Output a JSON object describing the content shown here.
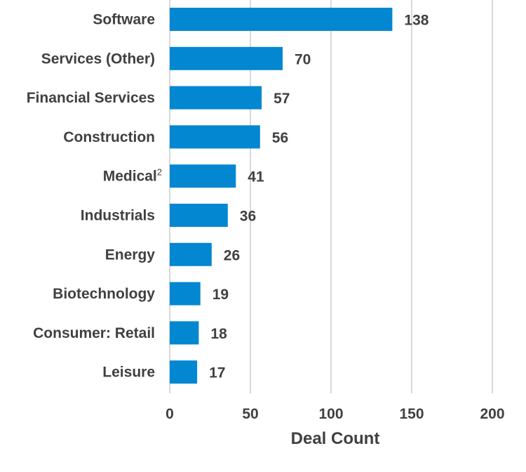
{
  "chart_data": {
    "type": "bar",
    "orientation": "horizontal",
    "title": "",
    "categories": [
      "Software",
      "Services (Other)",
      "Financial Services",
      "Construction",
      "Medical",
      "Industrials",
      "Energy",
      "Biotechnology",
      "Consumer: Retail",
      "Leisure"
    ],
    "category_superscripts": [
      "",
      "",
      "",
      "",
      "2",
      "",
      "",
      "",
      "",
      ""
    ],
    "values": [
      138,
      70,
      57,
      56,
      41,
      36,
      26,
      19,
      18,
      17
    ],
    "xlabel": "Deal Count",
    "ylabel": "",
    "xlim": [
      0,
      200
    ],
    "xticks": [
      0,
      50,
      100,
      150,
      200
    ],
    "grid": true,
    "data_labels": true,
    "bar_color": "#0287D0",
    "grid_color": "#D9D9D9",
    "text_color": "#404040"
  }
}
